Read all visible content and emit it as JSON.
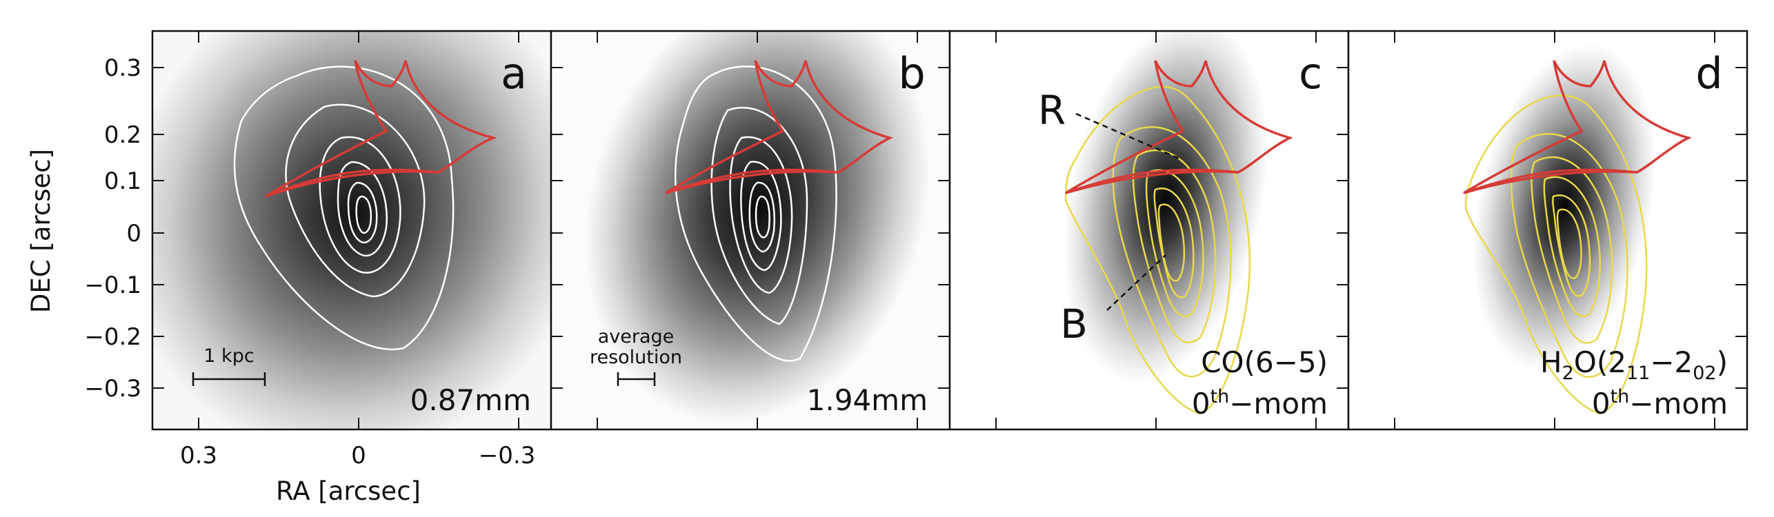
{
  "figure": {
    "x_axis_title": "RA [arcsec]",
    "y_axis_title": "DEC [arcsec]",
    "x_ticks": [
      "0.3",
      "0",
      "−0.3"
    ],
    "y_ticks": [
      "0.3",
      "0.2",
      "0.1",
      "0",
      "−0.1",
      "−0.2",
      "−0.3"
    ],
    "contour_colors": {
      "a": "#ffffff",
      "b": "#ffffff",
      "c": "#e8d84a",
      "d": "#e8d84a"
    },
    "caustic_color": "#d63b36"
  },
  "panels": [
    {
      "letter": "a",
      "label": "0.87mm",
      "scalebar_label": "1 kpc"
    },
    {
      "letter": "b",
      "label": "1.94mm",
      "scalebar_label_line1": "average",
      "scalebar_label_line2": "resolution"
    },
    {
      "letter": "c",
      "label_line1": "CO(6−5)",
      "label_line2_base": "0",
      "label_line2_sup": "th",
      "label_line2_rest": "−mom",
      "marker_r": "R",
      "marker_b": "B"
    },
    {
      "letter": "d",
      "label_line1_pre": "H",
      "label_line1_sub1": "2",
      "label_line1_mid": "O(2",
      "label_line1_sub2": "11",
      "label_line1_dash": "−2",
      "label_line1_sub3": "02",
      "label_line1_post": ")",
      "label_line2_base": "0",
      "label_line2_sup": "th",
      "label_line2_rest": "−mom"
    }
  ]
}
